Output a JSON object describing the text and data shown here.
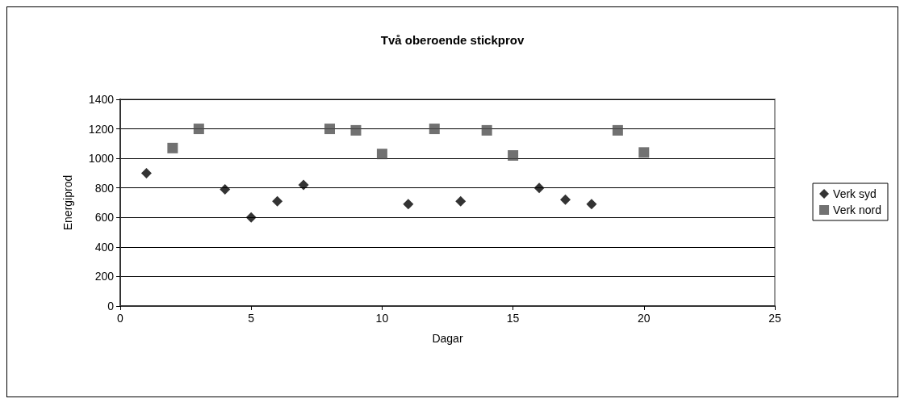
{
  "chart_data": {
    "type": "scatter",
    "title": "Två oberoende stickprov",
    "xlabel": "Dagar",
    "ylabel": "Energiprod",
    "series": [
      {
        "name": "Verk syd",
        "color": "#000000",
        "marker": "diamond",
        "x": [
          1,
          4,
          5,
          6,
          7,
          11,
          13,
          16,
          17,
          18
        ],
        "values": [
          900,
          790,
          600,
          710,
          820,
          690,
          710,
          800,
          720,
          690
        ]
      },
      {
        "name": "Verk nord",
        "color": "#4d4d4d",
        "marker": "square",
        "x": [
          2,
          3,
          8,
          9,
          10,
          12,
          14,
          15,
          19,
          20
        ],
        "values": [
          1070,
          1200,
          1200,
          1190,
          1030,
          1200,
          1190,
          1020,
          1190,
          1040
        ]
      }
    ],
    "xlim": [
      0,
      25
    ],
    "xticks": [
      0,
      5,
      10,
      15,
      20,
      25
    ],
    "ylim": [
      0,
      1400
    ],
    "yticks": [
      0,
      200,
      400,
      600,
      800,
      1000,
      1200,
      1400
    ],
    "grid": "y",
    "legend": "right"
  }
}
